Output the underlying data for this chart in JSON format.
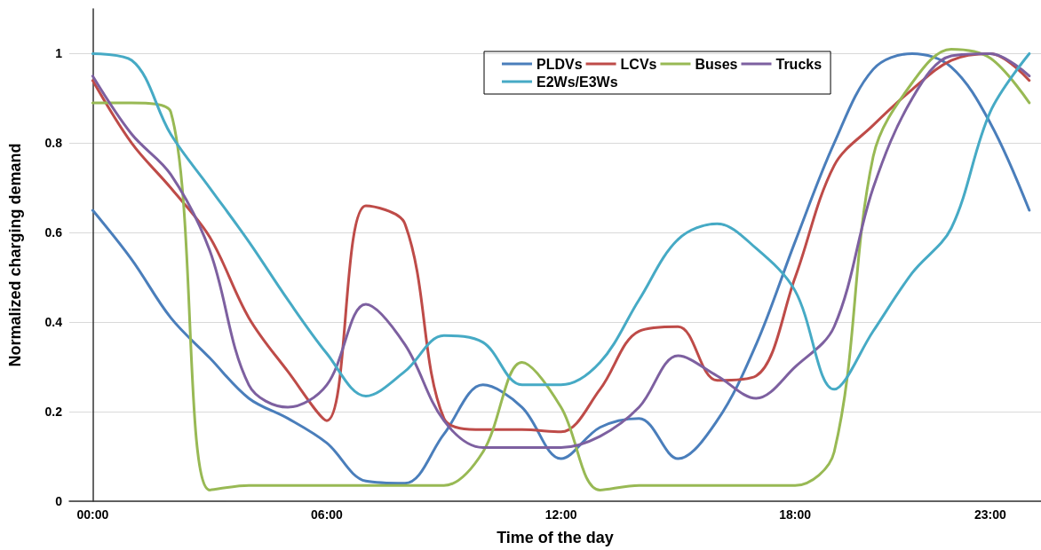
{
  "chart_data": {
    "type": "line",
    "xlabel": "Time of the day",
    "ylabel": "Normalized charging demand",
    "x": [
      0,
      1,
      2,
      3,
      4,
      5,
      6,
      7,
      8,
      9,
      10,
      11,
      12,
      13,
      14,
      15,
      16,
      17,
      18,
      19,
      20,
      21,
      22,
      23,
      24
    ],
    "xlim": [
      -0.6,
      24.3
    ],
    "xticks": [
      {
        "value": 0,
        "label": "00:00"
      },
      {
        "value": 6,
        "label": "06:00"
      },
      {
        "value": 12,
        "label": "12:00"
      },
      {
        "value": 18,
        "label": "18:00"
      },
      {
        "value": 23,
        "label": "23:00"
      }
    ],
    "ylim": [
      0,
      1.1
    ],
    "yticks": [
      0,
      0.2,
      0.4,
      0.6,
      0.8,
      1
    ],
    "grid": "y",
    "legend": "top",
    "marker": "none",
    "line_style": "solid",
    "series": [
      {
        "name": "PLDVs",
        "color": "#4a7ebb",
        "values": [
          0.65,
          0.54,
          0.41,
          0.32,
          0.23,
          0.185,
          0.13,
          0.045,
          0.04,
          0.15,
          0.26,
          0.21,
          0.095,
          0.165,
          0.185,
          0.095,
          0.18,
          0.35,
          0.58,
          0.8,
          0.965,
          1.0,
          0.97,
          0.845,
          0.65
        ]
      },
      {
        "name": "LCVs",
        "color": "#be4b48",
        "values": [
          0.94,
          0.8,
          0.7,
          0.59,
          0.41,
          0.29,
          0.18,
          0.66,
          0.62,
          0.185,
          0.16,
          0.16,
          0.155,
          0.25,
          0.38,
          0.39,
          0.27,
          0.28,
          0.5,
          0.75,
          0.84,
          0.92,
          0.985,
          1.0,
          0.94
        ]
      },
      {
        "name": "Buses",
        "color": "#98b954",
        "values": [
          0.89,
          0.89,
          0.87,
          0.025,
          0.035,
          0.035,
          0.035,
          0.035,
          0.035,
          0.035,
          0.11,
          0.31,
          0.21,
          0.025,
          0.035,
          0.035,
          0.035,
          0.035,
          0.035,
          0.11,
          0.77,
          0.935,
          1.01,
          0.99,
          0.89
        ]
      },
      {
        "name": "Trucks",
        "color": "#7d60a0",
        "values": [
          0.95,
          0.82,
          0.73,
          0.56,
          0.26,
          0.21,
          0.26,
          0.44,
          0.35,
          0.18,
          0.12,
          0.12,
          0.12,
          0.145,
          0.21,
          0.325,
          0.28,
          0.23,
          0.3,
          0.39,
          0.7,
          0.9,
          0.995,
          1.0,
          0.95
        ]
      },
      {
        "name": "E2Ws/E3Ws",
        "color": "#46aac5",
        "values": [
          1.0,
          0.985,
          0.82,
          0.7,
          0.58,
          0.45,
          0.33,
          0.235,
          0.29,
          0.37,
          0.355,
          0.26,
          0.26,
          0.31,
          0.45,
          0.585,
          0.62,
          0.565,
          0.47,
          0.25,
          0.38,
          0.51,
          0.61,
          0.87,
          1.0
        ]
      }
    ]
  }
}
